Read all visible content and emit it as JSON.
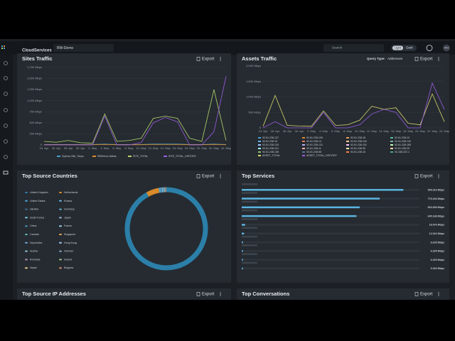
{
  "header": {
    "logo": "CloudServices",
    "workspace": "RW-Demo",
    "search": "Search",
    "theme_light": "Light",
    "theme_dark": "Dark",
    "avatar": "RH"
  },
  "export": "Export",
  "sites_traffic": {
    "type": "line",
    "title": "Sites Traffic",
    "x": [
      "24. Apr",
      "26. Apr",
      "28. Apr",
      "30. Apr",
      "2. May",
      "4. May",
      "6. May",
      "8. May",
      "10. May",
      "12. May",
      "14. May",
      "16. May",
      "18. May",
      "20. May",
      "22. May",
      "24. May"
    ],
    "ylim": [
      0,
      1750
    ],
    "yticks": [
      0,
      {
        "value": 250,
        "label": "250 Mbps"
      },
      {
        "value": 500,
        "label": "500 Mbps"
      },
      {
        "value": 750,
        "label": "750 Mbps"
      },
      {
        "value": 1000,
        "label": "1,000 Mbps"
      },
      {
        "value": 1250,
        "label": "1,250 Mbps"
      },
      {
        "value": 1500,
        "label": "1,500 Mbps"
      },
      {
        "value": 1750,
        "label": "1,750 Mbps"
      }
    ],
    "series": [
      {
        "name": "Sydney-Site_Tokyo",
        "color": "#4a9fd0",
        "values": [
          10,
          10,
          10,
          10,
          10,
          20,
          10,
          10,
          10,
          20,
          20,
          20,
          10,
          10,
          20,
          10
        ]
      },
      {
        "name": "RWDemo-Dallas",
        "color": "#d98a2b",
        "values": [
          5,
          5,
          5,
          5,
          5,
          10,
          5,
          5,
          5,
          10,
          10,
          10,
          5,
          5,
          10,
          5
        ]
      },
      {
        "name": "SITE_TOTAL",
        "color": "#b5d96a",
        "values": [
          80,
          60,
          100,
          50,
          40,
          700,
          80,
          100,
          150,
          600,
          650,
          600,
          150,
          80,
          1250,
          100
        ]
      },
      {
        "name": "SITE_TOTAL_HISTORY",
        "color": "#9b5de5",
        "values": [
          0,
          0,
          0,
          0,
          0,
          650,
          0,
          0,
          50,
          500,
          620,
          520,
          0,
          0,
          300,
          1550
        ]
      }
    ]
  },
  "assets_traffic": {
    "type": "line",
    "title": "Assets Traffic",
    "query_label": "Query Type:",
    "query_value": "Addresses",
    "x": [
      "24. Apr",
      "26. Apr",
      "28. Apr",
      "30. Apr",
      "2. May",
      "4. May",
      "6. May",
      "8. May",
      "10. May",
      "12. May",
      "14. May",
      "16. May",
      "18. May",
      "20. May",
      "22. May",
      "24. May"
    ],
    "ylim": [
      0,
      2000
    ],
    "yticks": [
      0,
      {
        "value": 500,
        "label": "500 Mbps"
      },
      {
        "value": 1000,
        "label": "1,000 Mbps"
      },
      {
        "value": 1500,
        "label": "1,500 Mbps"
      },
      {
        "value": 2000,
        "label": "2,000 Mbps"
      }
    ],
    "series": [
      {
        "name": "ASSET_TOTAL",
        "color": "#d6d66a",
        "values": [
          50,
          1050,
          80,
          60,
          50,
          550,
          80,
          100,
          250,
          700,
          600,
          650,
          150,
          100,
          1100,
          200
        ]
      },
      {
        "name": "ASSET_TOTAL_HISTORY",
        "color": "#9b5de5",
        "values": [
          0,
          200,
          0,
          0,
          0,
          500,
          0,
          0,
          100,
          450,
          600,
          500,
          0,
          0,
          1450,
          600
        ]
      }
    ],
    "legend": [
      {
        "label": "92.61.238.127",
        "color": "#4a9fd0"
      },
      {
        "label": "92.61.238.139",
        "color": "#d98a2b"
      },
      {
        "label": "92.61.238.18",
        "color": "#e4a05a"
      },
      {
        "label": "92.61.238.10",
        "color": "#4fc3a1"
      },
      {
        "label": "92.61.238.15",
        "color": "#6bb3e0"
      },
      {
        "label": "92.61.238.14",
        "color": "#e07a5f"
      },
      {
        "label": "92.61.238.242",
        "color": "#f2cc8f"
      },
      {
        "label": "92.61.238.142",
        "color": "#81b29a"
      },
      {
        "label": "92.61.238.133",
        "color": "#a0c4ff"
      },
      {
        "label": "92.61.238.131",
        "color": "#bdb2ff"
      },
      {
        "label": "92.61.238.151",
        "color": "#ffc6ff"
      },
      {
        "label": "92.61.238.165",
        "color": "#caffbf"
      },
      {
        "label": "92.61.238.241",
        "color": "#9bf6ff"
      },
      {
        "label": "92.61.238.11",
        "color": "#ffadad"
      },
      {
        "label": "92.61.238.55",
        "color": "#fdffb6"
      },
      {
        "label": "92.61.238.25",
        "color": "#ffd6a5"
      },
      {
        "label": "92.61.238.136",
        "color": "#90be6d"
      },
      {
        "label": "92.61.238.68",
        "color": "#577590"
      },
      {
        "label": "92.61.238.16",
        "color": "#f9844a"
      },
      {
        "label": "94.168.222.1",
        "color": "#43aa8b"
      }
    ]
  },
  "top_source_countries": {
    "type": "pie",
    "title": "Top Source Countries",
    "categories": [
      "United Kingdom",
      "Netherlands",
      "United States",
      "Russia",
      "Ukraine",
      "Germany",
      "South Korea",
      "Japan",
      "China",
      "France",
      "Canada",
      "Singapore",
      "Seychelles",
      "Hong Kong",
      "Austria",
      "Vietnam",
      "Romania",
      "Ireland",
      "Nepal",
      "Bulgaria"
    ],
    "colors": [
      "#2b7fa8",
      "#d98a2b",
      "#4a9fd0",
      "#6bb3e0",
      "#3c6e91",
      "#5aa9c9",
      "#7fc8e8",
      "#8ab6d6",
      "#3d8fb5",
      "#9cd3ee",
      "#5ab4ac",
      "#e4a05a",
      "#6fa8dc",
      "#a7c7e7",
      "#88c0d0",
      "#81a1c1",
      "#b48ead",
      "#a3be8c",
      "#ebcb8b",
      "#d08770"
    ],
    "values": [
      92,
      5,
      0.5,
      0.3,
      0.2,
      0.2,
      0.2,
      0.2,
      0.2,
      0.2,
      0.1,
      0.1,
      0.1,
      0.1,
      0.1,
      0.1,
      0.1,
      0.1,
      0.1,
      0.1
    ]
  },
  "top_services": {
    "type": "bar",
    "title": "Top Services",
    "orientation": "horizontal",
    "color": "#5ab4e0",
    "categories": [
      null,
      null,
      null,
      null,
      null,
      null,
      null,
      null,
      null,
      null
    ],
    "values": [
      909.316,
      776.294,
      663.835,
      645.168,
      18.976,
      12.616,
      6.625,
      6.325,
      6.325,
      6.32
    ],
    "value_labels": [
      "909.316 Mbps",
      "776.294 Mbps",
      "663.835 Mbps",
      "645.168 Mbps",
      "18.976 Mbps",
      "12.616 Mbps",
      "6.625 Mbps",
      "6.325 Mbps",
      "6.325 Mbps",
      "6.320 Mbps"
    ],
    "xlim": [
      0,
      1000
    ]
  },
  "top_source_ip": {
    "title": "Top Source IP Addresses"
  },
  "top_conversations": {
    "title": "Top Conversations"
  }
}
